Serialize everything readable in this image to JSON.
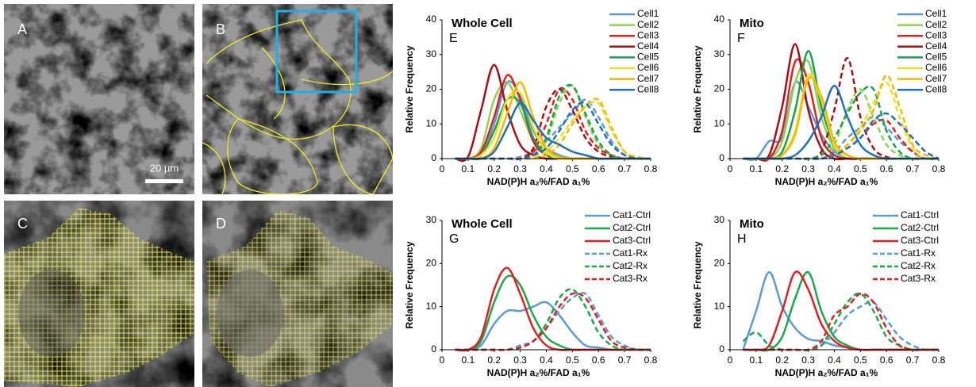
{
  "images": [
    {
      "label": "A"
    },
    {
      "label": "B"
    },
    {
      "label": "C"
    },
    {
      "label": "D"
    }
  ],
  "scale_bar": "20 µm",
  "chart_data": [
    {
      "type": "line",
      "panel": "E",
      "title": "Whole Cell",
      "x_label": "NAD(P)H a₂%/FAD a₁%",
      "y_label": "Relative Frequency",
      "xlim": [
        0,
        0.8
      ],
      "xticks": [
        0,
        0.1,
        0.2,
        0.3,
        0.4,
        0.5,
        0.6,
        0.7,
        0.8
      ],
      "ylim": [
        0,
        40
      ],
      "yticks": [
        0,
        10,
        20,
        30,
        40
      ],
      "x": [
        0.05,
        0.1,
        0.15,
        0.2,
        0.25,
        0.3,
        0.35,
        0.4,
        0.45,
        0.5,
        0.55,
        0.6,
        0.65,
        0.7,
        0.75,
        0.8
      ],
      "series": [
        {
          "name": "Cell1",
          "color": "#5b9bd5",
          "values": [
            0,
            0,
            1,
            10,
            22,
            18,
            8,
            3,
            1,
            0,
            0,
            0,
            0,
            0,
            0,
            0
          ],
          "rx_values": [
            0,
            0,
            0,
            0,
            0,
            0.5,
            2,
            5,
            9,
            13,
            17,
            12,
            5,
            1,
            0,
            0
          ]
        },
        {
          "name": "Cell2",
          "color": "#92d050",
          "values": [
            0,
            0,
            3,
            17,
            22,
            14,
            5,
            1,
            0,
            0,
            0,
            0,
            0,
            0,
            0,
            0
          ],
          "rx_values": [
            0,
            0,
            0,
            0,
            0,
            0,
            1,
            5,
            16,
            21,
            12,
            4,
            1,
            0,
            0,
            0
          ]
        },
        {
          "name": "Cell3",
          "color": "#e02020",
          "values": [
            0,
            0,
            2,
            12,
            24,
            17,
            5,
            1,
            0,
            0,
            0,
            0,
            0,
            0,
            0,
            0
          ],
          "rx_values": [
            0,
            0,
            0,
            0,
            0,
            0,
            2,
            10,
            20,
            17,
            8,
            3,
            1,
            0,
            0,
            0
          ]
        },
        {
          "name": "Cell4",
          "color": "#a50f15",
          "values": [
            0,
            0.5,
            14,
            27,
            14,
            4,
            1,
            0,
            0,
            0,
            0,
            0,
            0,
            0,
            0,
            0
          ],
          "rx_values": [
            0,
            0,
            0,
            0,
            0,
            0,
            3,
            15,
            20,
            14,
            6,
            2,
            0.5,
            0,
            0,
            0
          ]
        },
        {
          "name": "Cell5",
          "color": "#1a9e50",
          "values": [
            0,
            0,
            1,
            8,
            17,
            16,
            6,
            1,
            0,
            0,
            0,
            0,
            0,
            0,
            0,
            0
          ],
          "rx_values": [
            0,
            0,
            0,
            0,
            0,
            0,
            1,
            6,
            18,
            21,
            13,
            5,
            1,
            0,
            0,
            0
          ]
        },
        {
          "name": "Cell6",
          "color": "#f0e020",
          "values": [
            0,
            0,
            1,
            6,
            17,
            19,
            9,
            2,
            0,
            0,
            0,
            0,
            0,
            0,
            0,
            0
          ],
          "rx_values": [
            0,
            0,
            0,
            0,
            0,
            0,
            0.5,
            2,
            6,
            11,
            15,
            16,
            8,
            2,
            0,
            0
          ]
        },
        {
          "name": "Cell7",
          "color": "#f5b800",
          "values": [
            0,
            0,
            0,
            3,
            13,
            22,
            12,
            3,
            0.5,
            0,
            0,
            0,
            0,
            0,
            0,
            0
          ],
          "rx_values": [
            0,
            0,
            0,
            0,
            0,
            0,
            0,
            1,
            4,
            10,
            15,
            17,
            9,
            2,
            0.5,
            0
          ]
        },
        {
          "name": "Cell8",
          "color": "#1f6fbf",
          "values": [
            0,
            0,
            0,
            2,
            9,
            16,
            11,
            6,
            4,
            2,
            1,
            0,
            0,
            0,
            0,
            0
          ],
          "rx_values": [
            0,
            0,
            0,
            0,
            0,
            0,
            1,
            3,
            8,
            14,
            16,
            10,
            4,
            1,
            0,
            0
          ]
        }
      ]
    },
    {
      "type": "line",
      "panel": "F",
      "title": "Mito",
      "x_label": "NAD(P)H a₂%/FAD a₁%",
      "y_label": "Relative Frequency",
      "xlim": [
        0,
        0.8
      ],
      "xticks": [
        0,
        0.1,
        0.2,
        0.3,
        0.4,
        0.5,
        0.6,
        0.7,
        0.8
      ],
      "ylim": [
        0,
        40
      ],
      "yticks": [
        0,
        10,
        20,
        30,
        40
      ],
      "x": [
        0.05,
        0.1,
        0.15,
        0.2,
        0.25,
        0.3,
        0.35,
        0.4,
        0.45,
        0.5,
        0.55,
        0.6,
        0.65,
        0.7,
        0.75,
        0.8
      ],
      "series": [
        {
          "name": "Cell1",
          "color": "#5b9bd5",
          "values": [
            0,
            0,
            5,
            6,
            22,
            15,
            7,
            2,
            0,
            0,
            0,
            0,
            0,
            0,
            0,
            0
          ],
          "rx_values": [
            0,
            0,
            0,
            0,
            0,
            0,
            0,
            2,
            6,
            9,
            12,
            9,
            5,
            2,
            0,
            0
          ]
        },
        {
          "name": "Cell2",
          "color": "#92d050",
          "values": [
            0,
            0,
            0,
            5,
            22,
            28,
            12,
            3,
            0,
            0,
            0,
            0,
            0,
            0,
            0,
            0
          ],
          "rx_values": [
            0,
            0,
            0,
            0,
            0,
            0,
            1,
            4,
            14,
            20,
            12,
            4,
            1,
            0,
            0,
            0
          ]
        },
        {
          "name": "Cell3",
          "color": "#e02020",
          "values": [
            0,
            0,
            0,
            8,
            28,
            22,
            6,
            1,
            0,
            0,
            0,
            0,
            0,
            0,
            0,
            0
          ],
          "rx_values": [
            0,
            0,
            0,
            0,
            0,
            0,
            0,
            1,
            3,
            6,
            10,
            11,
            6,
            2,
            0,
            0
          ]
        },
        {
          "name": "Cell4",
          "color": "#a50f15",
          "values": [
            0,
            0,
            1,
            15,
            33,
            14,
            3,
            0,
            0,
            0,
            0,
            0,
            0,
            0,
            0,
            0
          ],
          "rx_values": [
            0,
            0,
            0,
            0,
            0,
            0,
            2,
            14,
            29,
            12,
            3,
            0.5,
            0,
            0,
            0,
            0
          ]
        },
        {
          "name": "Cell5",
          "color": "#1a9e50",
          "values": [
            0,
            0,
            0,
            2,
            14,
            31,
            15,
            4,
            1,
            0,
            0,
            0,
            0,
            0,
            0,
            0
          ],
          "rx_values": [
            0,
            0,
            0,
            0,
            0,
            0,
            1,
            6,
            13,
            19,
            20,
            8,
            2,
            0,
            0,
            0
          ]
        },
        {
          "name": "Cell6",
          "color": "#f0e020",
          "values": [
            0,
            0,
            0,
            1,
            8,
            24,
            17,
            4,
            1,
            0,
            0,
            0,
            0,
            0,
            0,
            0
          ],
          "rx_values": [
            0,
            0,
            0,
            0,
            0,
            0,
            0,
            1,
            4,
            9,
            16,
            22,
            12,
            3,
            0,
            0
          ]
        },
        {
          "name": "Cell7",
          "color": "#f5b800",
          "values": [
            0,
            0,
            0,
            1,
            7,
            23,
            18,
            5,
            1,
            0,
            0,
            0,
            0,
            0,
            0,
            0
          ],
          "rx_values": [
            0,
            0,
            0,
            0,
            0,
            0,
            0,
            1,
            4,
            8,
            14,
            24,
            15,
            4,
            1,
            0
          ]
        },
        {
          "name": "Cell8",
          "color": "#1f6fbf",
          "values": [
            0,
            0,
            0,
            0,
            1,
            5,
            12,
            21,
            12,
            4,
            1,
            0,
            0,
            0,
            0,
            0
          ],
          "rx_values": [
            0,
            0,
            0,
            0,
            0,
            0,
            0,
            1,
            3,
            6,
            11,
            13,
            10,
            6,
            2,
            0
          ]
        }
      ]
    },
    {
      "type": "line",
      "panel": "G",
      "title": "Whole Cell",
      "x_label": "NAD(P)H a₂%/FAD a₁%",
      "y_label": "Relative Frequency",
      "xlim": [
        0,
        0.8
      ],
      "xticks": [
        0,
        0.1,
        0.2,
        0.3,
        0.4,
        0.5,
        0.6,
        0.7,
        0.8
      ],
      "ylim": [
        0,
        30
      ],
      "yticks": [
        0,
        10,
        20,
        30
      ],
      "x": [
        0.05,
        0.1,
        0.15,
        0.2,
        0.25,
        0.3,
        0.35,
        0.4,
        0.45,
        0.5,
        0.55,
        0.6,
        0.65,
        0.7,
        0.75,
        0.8
      ],
      "series": [
        {
          "name": "Cat1-Ctrl",
          "color": "#5b9bd5",
          "dashed": false,
          "values": [
            0,
            0,
            1,
            6,
            9,
            9,
            10,
            11,
            8,
            4,
            1,
            0.5,
            0,
            0,
            0,
            0
          ]
        },
        {
          "name": "Cat2-Ctrl",
          "color": "#1aa84a",
          "dashed": false,
          "values": [
            0,
            0,
            2,
            11,
            17,
            15,
            8,
            3,
            1,
            0,
            0,
            0,
            0,
            0,
            0,
            0
          ]
        },
        {
          "name": "Cat3-Ctrl",
          "color": "#e02020",
          "dashed": false,
          "values": [
            0,
            0,
            3,
            14,
            19,
            13,
            5,
            1,
            0,
            0,
            0,
            0,
            0,
            0,
            0,
            0
          ]
        },
        {
          "name": "Cat1-Rx",
          "color": "#5b9bd5",
          "dashed": true,
          "values": [
            0,
            0,
            0,
            0,
            0,
            1,
            2,
            5,
            9,
            12,
            13,
            8,
            3,
            1,
            0,
            0
          ]
        },
        {
          "name": "Cat2-Rx",
          "color": "#1aa84a",
          "dashed": true,
          "values": [
            0,
            0,
            0,
            0,
            0,
            0.5,
            2,
            6,
            12,
            14,
            10,
            4,
            1,
            0,
            0,
            0
          ]
        },
        {
          "name": "Cat3-Rx",
          "color": "#e02020",
          "dashed": true,
          "values": [
            0,
            0,
            0,
            0,
            0,
            0.5,
            2,
            5,
            10,
            13,
            12,
            7,
            2,
            0.5,
            0,
            0
          ]
        }
      ]
    },
    {
      "type": "line",
      "panel": "H",
      "title": "Mito",
      "x_label": "NAD(P)H a₂%/FAD a₁%",
      "y_label": "Relative Frequency",
      "xlim": [
        0,
        0.8
      ],
      "xticks": [
        0,
        0.1,
        0.2,
        0.3,
        0.4,
        0.5,
        0.6,
        0.7,
        0.8
      ],
      "ylim": [
        0,
        30
      ],
      "yticks": [
        0,
        10,
        20,
        30
      ],
      "x": [
        0.05,
        0.1,
        0.15,
        0.2,
        0.25,
        0.3,
        0.35,
        0.4,
        0.45,
        0.5,
        0.55,
        0.6,
        0.65,
        0.7,
        0.75,
        0.8
      ],
      "series": [
        {
          "name": "Cat1-Ctrl",
          "color": "#5b9bd5",
          "dashed": false,
          "values": [
            0,
            9,
            18,
            10,
            5,
            2.5,
            2,
            1,
            0.5,
            0,
            0,
            0,
            0,
            0,
            0,
            0
          ]
        },
        {
          "name": "Cat2-Ctrl",
          "color": "#1aa84a",
          "dashed": false,
          "values": [
            0,
            0,
            0,
            3,
            12,
            18,
            9,
            3,
            1,
            0,
            0,
            0,
            0,
            0,
            0,
            0
          ]
        },
        {
          "name": "Cat3-Ctrl",
          "color": "#e02020",
          "dashed": false,
          "values": [
            0,
            0,
            1,
            9,
            18,
            14,
            6,
            2,
            0.5,
            0,
            0,
            0,
            0,
            0,
            0,
            0
          ]
        },
        {
          "name": "Cat1-Rx",
          "color": "#5b9bd5",
          "dashed": true,
          "values": [
            0,
            0,
            0,
            0,
            0,
            0,
            1,
            4,
            8,
            10,
            11,
            7,
            3,
            1,
            0,
            0
          ]
        },
        {
          "name": "Cat2-Rx",
          "color": "#1aa84a",
          "dashed": true,
          "values": [
            2,
            4,
            1,
            0,
            0,
            0,
            1,
            6,
            11,
            13,
            9,
            3,
            1,
            0,
            0,
            0
          ]
        },
        {
          "name": "Cat3-Rx",
          "color": "#e02020",
          "dashed": true,
          "values": [
            0,
            0,
            0,
            0,
            0,
            0,
            2,
            8,
            10,
            13,
            11,
            5,
            1,
            0,
            0,
            0
          ]
        }
      ]
    }
  ]
}
